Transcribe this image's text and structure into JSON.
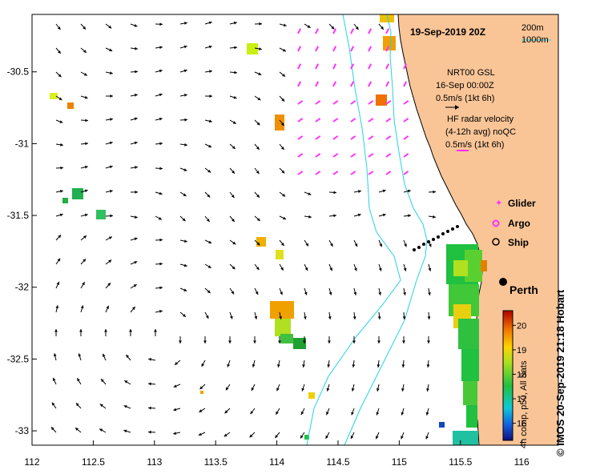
{
  "map": {
    "title": "19-Sep-2019 20Z",
    "x_ticks": [
      "112",
      "112.5",
      "113",
      "113.5",
      "114",
      "114.5",
      "115",
      "115.5",
      "116"
    ],
    "y_ticks": [
      "-30.5",
      "-31",
      "-31.5",
      "-32",
      "-32.5",
      "-33"
    ],
    "x_range": [
      112,
      116.3
    ],
    "y_range": [
      -33.1,
      -30.1
    ],
    "isobath_200": "200m",
    "isobath_1000": "1000m",
    "gsl_line1": "NRT00 GSL",
    "gsl_line2": "16-Sep 00:00Z",
    "gsl_scale": "0.5m/s (1kt 6h)",
    "hf_line1": "HF radar velocity",
    "hf_line2": "(4-12h avg) noQC",
    "hf_scale": "0.5m/s (1kt 6h)",
    "legend_glider": "Glider",
    "legend_argo": "Argo",
    "legend_ship": "Ship",
    "city": "Perth",
    "colorbar_title": "4h comp, p50, All Sats",
    "colorbar_ticks": [
      "16",
      "17",
      "18",
      "19",
      "20"
    ],
    "colorbar_range": [
      15.3,
      20.6
    ],
    "credit": "© IMOS 20-Sep-2019 21:18 Hobart",
    "colors": {
      "land": "#f9c597",
      "isobath": "#22d3e6",
      "hf_radar": "#ff33ff",
      "frame": "#000000"
    }
  }
}
